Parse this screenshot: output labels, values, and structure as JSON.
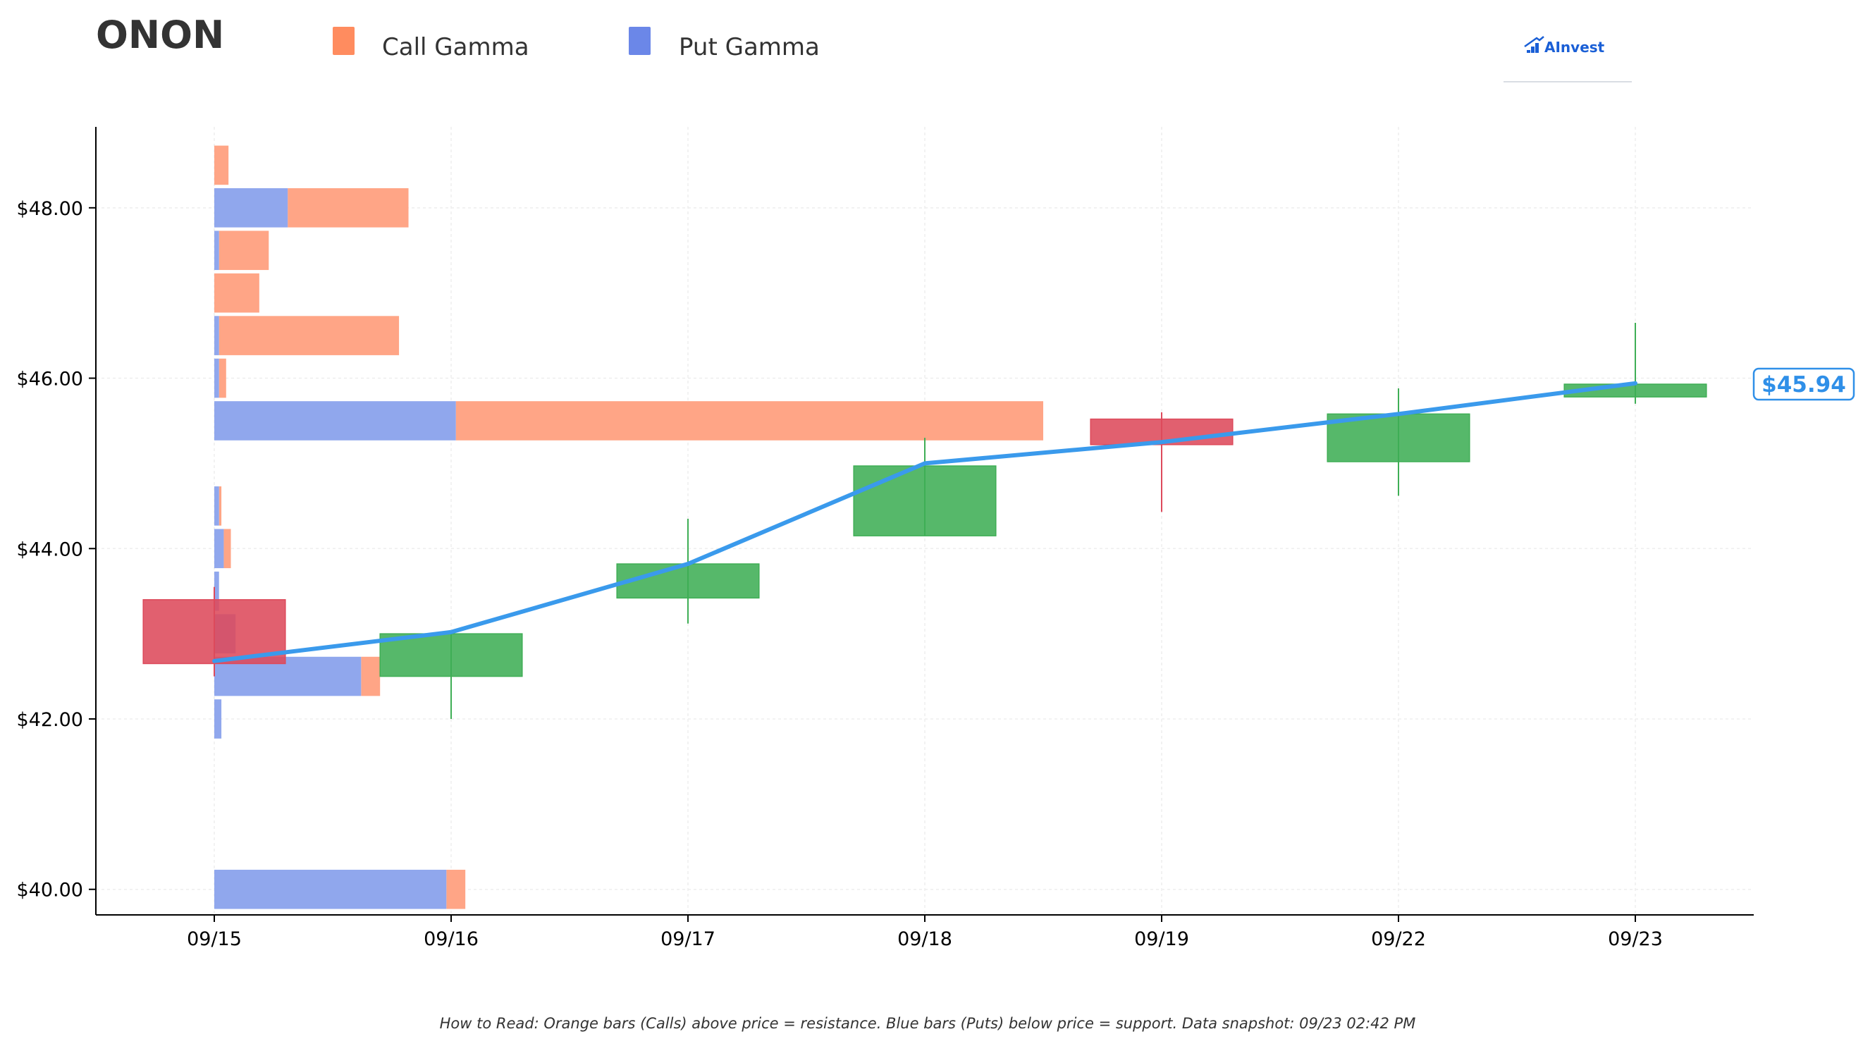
{
  "header": {
    "ticker": "ONON",
    "brand": "AInvest"
  },
  "legend": [
    {
      "label": "Call Gamma",
      "color": "#ff8c5f"
    },
    {
      "label": "Put Gamma",
      "color": "#6b87e8"
    }
  ],
  "colors": {
    "call": "#ffa07f",
    "put": "#8aa2ec",
    "up": "#3fae55",
    "down": "#dd4a5b",
    "price_line": "#3a9aec"
  },
  "footnote": "How to Read: Orange bars (Calls) above price = resistance. Blue bars (Puts) below price = support. Data snapshot: 09/23 02:42 PM",
  "chart_data": {
    "type": "candlestick",
    "x_categories": [
      "09/15",
      "09/16",
      "09/17",
      "09/18",
      "09/19",
      "09/22",
      "09/23"
    ],
    "y_ticks": [
      {
        "value": 40,
        "label": "$40.00"
      },
      {
        "value": 42,
        "label": "$42.00"
      },
      {
        "value": 44,
        "label": "$44.00"
      },
      {
        "value": 46,
        "label": "$46.00"
      },
      {
        "value": 48,
        "label": "$48.00"
      }
    ],
    "ylim": [
      39.7,
      48.95
    ],
    "xlim": [
      -0.5,
      6.5
    ],
    "grid": true,
    "legend_position": "top",
    "candles": [
      {
        "date": "09/15",
        "open": 43.4,
        "close": 42.65,
        "high": 43.55,
        "low": 42.5
      },
      {
        "date": "09/16",
        "open": 42.5,
        "close": 43.0,
        "high": 43.0,
        "low": 42.0
      },
      {
        "date": "09/17",
        "open": 43.42,
        "close": 43.82,
        "high": 44.35,
        "low": 43.12
      },
      {
        "date": "09/18",
        "open": 44.15,
        "close": 44.97,
        "high": 45.3,
        "low": 44.15
      },
      {
        "date": "09/19",
        "open": 45.52,
        "close": 45.22,
        "high": 45.6,
        "low": 44.43
      },
      {
        "date": "09/22",
        "open": 45.02,
        "close": 45.58,
        "high": 45.88,
        "low": 44.62
      },
      {
        "date": "09/23",
        "open": 45.78,
        "close": 45.93,
        "high": 46.65,
        "low": 45.7
      }
    ],
    "price_line": [
      42.68,
      43.02,
      43.82,
      45.0,
      45.25,
      45.58,
      45.94
    ],
    "current_price_label": "$45.94",
    "gamma_strikes": [
      {
        "strike": 40.0,
        "put": 0.98,
        "call": 0.08
      },
      {
        "strike": 42.0,
        "put": 0.03,
        "call": 0.0
      },
      {
        "strike": 42.5,
        "put": 0.62,
        "call": 0.08
      },
      {
        "strike": 43.0,
        "put": 0.09,
        "call": 0.0
      },
      {
        "strike": 43.5,
        "put": 0.02,
        "call": 0.0
      },
      {
        "strike": 44.0,
        "put": 0.04,
        "call": 0.03
      },
      {
        "strike": 44.5,
        "put": 0.02,
        "call": 0.01
      },
      {
        "strike": 45.5,
        "put": 1.02,
        "call": 2.48
      },
      {
        "strike": 46.0,
        "put": 0.02,
        "call": 0.03
      },
      {
        "strike": 46.5,
        "put": 0.02,
        "call": 0.76
      },
      {
        "strike": 47.0,
        "put": 0.0,
        "call": 0.19
      },
      {
        "strike": 47.5,
        "put": 0.02,
        "call": 0.21
      },
      {
        "strike": 48.0,
        "put": 0.31,
        "call": 0.51
      },
      {
        "strike": 48.5,
        "put": 0.0,
        "call": 0.06
      }
    ]
  }
}
